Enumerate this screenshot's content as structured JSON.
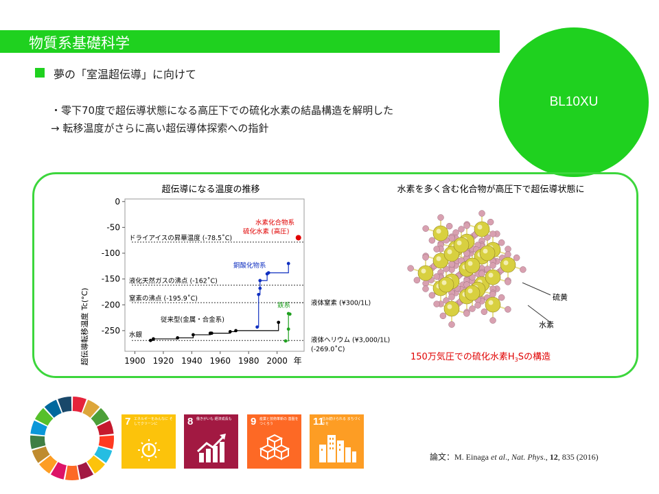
{
  "header": {
    "title": "物質系基礎科学"
  },
  "badge": {
    "label": "BL10XU"
  },
  "subtitle": "夢の「室温超伝導」に向けて",
  "body": {
    "line1": "・零下70度で超伝導状態になる高圧下での硫化水素の結晶構造を解明した",
    "line2": "→ 転移温度がさらに高い超伝導体探索への指針"
  },
  "chart_data": {
    "type": "scatter",
    "title": "超伝導になる温度の推移",
    "ylabel": "超伝導転移温度 Tc(°C)",
    "xlabel_suffix": "年",
    "xlim": [
      1900,
      2015
    ],
    "ylim": [
      -290,
      5
    ],
    "x_ticks": [
      1900,
      1920,
      1940,
      1960,
      1980,
      2000
    ],
    "y_ticks": [
      0,
      -50,
      -100,
      -150,
      -200,
      -250
    ],
    "reference_lines": [
      {
        "label": "ドライアイスの昇華温度 (-78.5˚C)",
        "y": -78.5
      },
      {
        "label": "液化天然ガスの沸点 (-162˚C)",
        "y": -162
      },
      {
        "label": "窒素の沸点 (-195.9˚C)",
        "y": -195.9
      }
    ],
    "right_labels": [
      {
        "label": "液体窒素 (¥300/1L)",
        "y": -196
      },
      {
        "label": "液体ヘリウム (¥3,000/1L)",
        "y": -268
      },
      {
        "label": "(-269.0˚C)",
        "y": -286
      }
    ],
    "series": [
      {
        "name": "水銀",
        "color": "#000000",
        "points": [
          [
            1911,
            -269
          ],
          [
            1913,
            -266
          ],
          [
            1930,
            -264
          ],
          [
            1941,
            -258
          ],
          [
            1953,
            -255
          ],
          [
            1954,
            -255
          ],
          [
            1967,
            -252
          ],
          [
            1971,
            -250
          ],
          [
            2001,
            -234
          ]
        ]
      },
      {
        "name": "従来型(金属・合金系)",
        "color": "#000000",
        "points": []
      },
      {
        "name": "銅酸化物系",
        "color": "#1030c0",
        "points": [
          [
            1986,
            -243
          ],
          [
            1987,
            -180
          ],
          [
            1988,
            -168
          ],
          [
            1988,
            -153
          ],
          [
            1993,
            -140
          ],
          [
            1994,
            -138
          ],
          [
            2008,
            -120
          ]
        ]
      },
      {
        "name": "鉄系",
        "color": "#20a020",
        "points": [
          [
            2006,
            -270
          ],
          [
            2008,
            -247
          ],
          [
            2008,
            -217
          ],
          [
            2009,
            -218
          ]
        ]
      },
      {
        "name": "水素化合物系",
        "color": "#e00000",
        "points": []
      },
      {
        "name": "硫化水素 (高圧)",
        "color": "#e00000",
        "points": [
          [
            2015,
            -70
          ]
        ]
      }
    ]
  },
  "structure": {
    "title": "水素を多く含む化合物が高圧下で超伝導状態に",
    "label_s": "硫黄",
    "label_h": "水素",
    "caption_pre": "150万気圧での硫化水素H",
    "caption_sub": "3",
    "caption_post": "Sの構造",
    "colors": {
      "sulfur": "#d8d040",
      "hydrogen": "#d8a0b0"
    }
  },
  "sdg": {
    "tiles": [
      {
        "number": "7",
        "caption": "エネルギーをみんなに そしてクリーンに",
        "color": "#fcc30b",
        "icon": "sun-icon"
      },
      {
        "number": "8",
        "caption": "働きがいも 経済成長も",
        "color": "#a21942",
        "icon": "growth-chart-icon"
      },
      {
        "number": "9",
        "caption": "産業と技術革新の 基盤をつくろう",
        "color": "#fd6925",
        "icon": "cubes-icon"
      },
      {
        "number": "11",
        "caption": "住み続けられる まちづくりを",
        "color": "#fd9d24",
        "icon": "city-icon"
      }
    ]
  },
  "reference": {
    "prefix": "論文：",
    "authors": "M. Einaga ",
    "etal": "et al",
    "sep": "., ",
    "journal": "Nat. Phys",
    "mid": "., ",
    "volume": "12",
    "tail": ", 835 (2016)"
  }
}
